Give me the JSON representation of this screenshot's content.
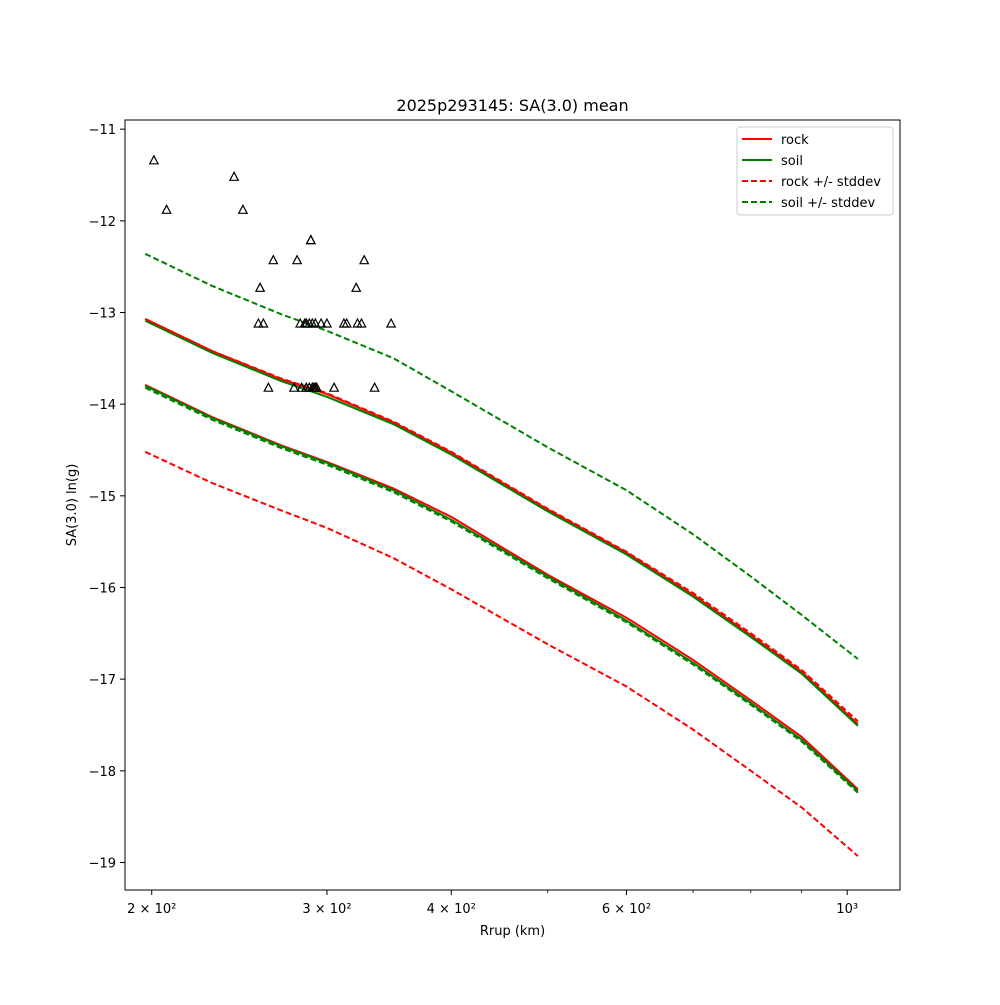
{
  "chart_data": {
    "type": "line",
    "title": "2025p293145: SA(3.0) mean",
    "xlabel": "Rrup (km)",
    "ylabel": "SA(3.0) ln(g)",
    "xscale": "log",
    "xlim": [
      188,
      1130
    ],
    "ylim": [
      -19.3,
      -10.9
    ],
    "x_ticks": [
      {
        "value": 200,
        "label": "2 × 10²"
      },
      {
        "value": 300,
        "label": "3 × 10²"
      },
      {
        "value": 400,
        "label": "4 × 10²"
      },
      {
        "value": 600,
        "label": "6 × 10²"
      },
      {
        "value": 1000,
        "label": "10³"
      }
    ],
    "x_minor_ticks": [
      500,
      700,
      800,
      900
    ],
    "y_ticks": [
      {
        "value": -11,
        "label": "−11"
      },
      {
        "value": -12,
        "label": "−12"
      },
      {
        "value": -13,
        "label": "−13"
      },
      {
        "value": -14,
        "label": "−14"
      },
      {
        "value": -15,
        "label": "−15"
      },
      {
        "value": -16,
        "label": "−16"
      },
      {
        "value": -17,
        "label": "−17"
      },
      {
        "value": -18,
        "label": "−18"
      },
      {
        "value": -19,
        "label": "−19"
      }
    ],
    "grid": false,
    "legend_position": "top-right",
    "legend": [
      {
        "label": "rock",
        "color": "#ff0000",
        "style": "solid"
      },
      {
        "label": "soil",
        "color": "#008000",
        "style": "solid"
      },
      {
        "label": "rock +/- stddev",
        "color": "#ff0000",
        "style": "dashed"
      },
      {
        "label": "soil +/- stddev",
        "color": "#008000",
        "style": "dashed"
      }
    ],
    "series": [
      {
        "name": "rock",
        "color": "#ff0000",
        "style": "solid",
        "x": [
          197,
          230,
          270,
          300,
          350,
          400,
          500,
          600,
          700,
          800,
          900,
          1025
        ],
        "y": [
          -13.79,
          -14.14,
          -14.45,
          -14.63,
          -14.92,
          -15.23,
          -15.86,
          -16.33,
          -16.79,
          -17.23,
          -17.63,
          -18.2
        ]
      },
      {
        "name": "rock",
        "color": "#ff0000",
        "style": "solid",
        "x": [
          197,
          230,
          270,
          300,
          350,
          400,
          500,
          600,
          700,
          800,
          900,
          1025
        ],
        "y": [
          -13.07,
          -13.42,
          -13.73,
          -13.89,
          -14.2,
          -14.53,
          -15.15,
          -15.62,
          -16.08,
          -16.52,
          -16.92,
          -17.49
        ]
      },
      {
        "name": "soil",
        "color": "#008000",
        "style": "solid",
        "x": [
          197,
          230,
          270,
          300,
          350,
          400,
          500,
          600,
          700,
          800,
          900,
          1025
        ],
        "y": [
          -13.09,
          -13.44,
          -13.75,
          -13.92,
          -14.22,
          -14.55,
          -15.17,
          -15.64,
          -16.1,
          -16.54,
          -16.94,
          -17.51
        ]
      },
      {
        "name": "soil",
        "color": "#008000",
        "style": "solid",
        "x": [
          197,
          230,
          270,
          300,
          350,
          400,
          500,
          600,
          700,
          800,
          900,
          1025
        ],
        "y": [
          -13.8,
          -14.15,
          -14.46,
          -14.64,
          -14.94,
          -15.26,
          -15.88,
          -16.36,
          -16.82,
          -17.26,
          -17.66,
          -18.22
        ]
      },
      {
        "name": "rock +/- stddev",
        "color": "#ff0000",
        "style": "dashed",
        "x": [
          197,
          230,
          270,
          300,
          350,
          400,
          500,
          600,
          700,
          800,
          900,
          1025
        ],
        "y": [
          -13.07,
          -13.42,
          -13.72,
          -13.88,
          -14.19,
          -14.52,
          -15.14,
          -15.61,
          -16.06,
          -16.5,
          -16.9,
          -17.46
        ]
      },
      {
        "name": "rock +/- stddev",
        "color": "#ff0000",
        "style": "dashed",
        "x": [
          197,
          230,
          270,
          300,
          350,
          400,
          500,
          600,
          700,
          800,
          900,
          1025
        ],
        "y": [
          -14.52,
          -14.86,
          -15.16,
          -15.35,
          -15.68,
          -16.02,
          -16.62,
          -17.08,
          -17.55,
          -18.0,
          -18.4,
          -18.93
        ]
      },
      {
        "name": "soil +/- stddev",
        "color": "#008000",
        "style": "dashed",
        "x": [
          197,
          230,
          270,
          300,
          350,
          400,
          500,
          600,
          700,
          800,
          900,
          1025
        ],
        "y": [
          -12.36,
          -12.71,
          -13.02,
          -13.2,
          -13.5,
          -13.86,
          -14.47,
          -14.94,
          -15.42,
          -15.88,
          -16.3,
          -16.78
        ]
      },
      {
        "name": "soil +/- stddev",
        "color": "#008000",
        "style": "dashed",
        "x": [
          197,
          230,
          270,
          300,
          350,
          400,
          500,
          600,
          700,
          800,
          900,
          1025
        ],
        "y": [
          -13.82,
          -14.17,
          -14.48,
          -14.66,
          -14.96,
          -15.28,
          -15.9,
          -16.38,
          -16.84,
          -17.28,
          -17.68,
          -18.24
        ]
      }
    ],
    "observations": {
      "marker": "triangle",
      "x": [
        201,
        207,
        242,
        247,
        256,
        257,
        259,
        262,
        265,
        278,
        280,
        282,
        283,
        285,
        286,
        286,
        288,
        288,
        289,
        289,
        290,
        290,
        291,
        292,
        292,
        293,
        296,
        300,
        305,
        312,
        314,
        321,
        322,
        325,
        327,
        335,
        348
      ],
      "y": [
        -11.34,
        -11.88,
        -11.52,
        -11.88,
        -13.12,
        -12.73,
        -13.12,
        -13.82,
        -12.43,
        -13.82,
        -12.43,
        -13.12,
        -13.82,
        -13.12,
        -13.82,
        -13.12,
        -13.12,
        -13.82,
        -12.21,
        -12.21,
        -13.82,
        -13.12,
        -13.82,
        -13.82,
        -13.12,
        -13.82,
        -13.12,
        -13.12,
        -13.82,
        -13.12,
        -13.12,
        -12.73,
        -13.12,
        -13.12,
        -12.43,
        -13.82,
        -13.12
      ]
    }
  }
}
